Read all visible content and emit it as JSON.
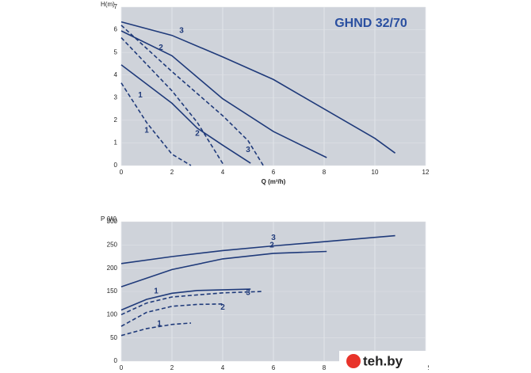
{
  "chart_data": [
    {
      "type": "line",
      "title": "GHND 32/70",
      "y_label": "H(m)",
      "x_label": "Q (m³/h)",
      "xlim": [
        0,
        12
      ],
      "xticks": [
        0,
        2,
        4,
        6,
        8,
        10,
        12
      ],
      "ylim": [
        0,
        7
      ],
      "yticks": [
        0,
        1,
        2,
        3,
        4,
        5,
        6,
        7
      ],
      "grid": true,
      "series": [
        {
          "name": "3",
          "color": "#1f3a7a",
          "dashed": false,
          "x": [
            0,
            2,
            4,
            6,
            8,
            10,
            10.8
          ],
          "values": [
            6.35,
            5.75,
            4.8,
            3.8,
            2.5,
            1.2,
            0.55
          ]
        },
        {
          "name": "2",
          "color": "#1f3a7a",
          "dashed": false,
          "x": [
            0,
            2,
            4,
            6,
            8.1
          ],
          "values": [
            5.95,
            4.85,
            2.95,
            1.5,
            0.35
          ]
        },
        {
          "name": "1",
          "color": "#1f3a7a",
          "dashed": false,
          "x": [
            0,
            2,
            3,
            4,
            5.1
          ],
          "values": [
            4.45,
            2.75,
            1.65,
            0.9,
            0.1
          ]
        },
        {
          "name": "3",
          "color": "#1f3a7a",
          "dashed": true,
          "x": [
            0,
            2,
            4,
            5,
            5.6
          ],
          "values": [
            6.2,
            4.15,
            2.2,
            1.1,
            0
          ]
        },
        {
          "name": "2",
          "color": "#1f3a7a",
          "dashed": true,
          "x": [
            0,
            2,
            3,
            4.05
          ],
          "values": [
            5.65,
            3.3,
            1.9,
            0
          ]
        },
        {
          "name": "1",
          "color": "#1f3a7a",
          "dashed": true,
          "x": [
            0,
            1,
            2,
            2.75
          ],
          "values": [
            3.65,
            1.9,
            0.5,
            0
          ]
        }
      ]
    },
    {
      "type": "line",
      "y_label": "P (W)",
      "x_label": "Q (m³/h)",
      "xlim": [
        0,
        12
      ],
      "xticks": [
        0,
        2,
        4,
        6,
        8,
        10,
        12
      ],
      "ylim": [
        0,
        300
      ],
      "yticks": [
        0,
        50,
        100,
        150,
        200,
        250,
        300
      ],
      "grid": true,
      "series": [
        {
          "name": "3",
          "color": "#1f3a7a",
          "dashed": false,
          "x": [
            0,
            2,
            4,
            6,
            8,
            10.8
          ],
          "values": [
            210,
            225,
            238,
            248,
            257,
            270
          ]
        },
        {
          "name": "2",
          "color": "#1f3a7a",
          "dashed": false,
          "x": [
            0,
            2,
            4,
            6,
            8.1
          ],
          "values": [
            160,
            197,
            220,
            232,
            236
          ]
        },
        {
          "name": "1",
          "color": "#1f3a7a",
          "dashed": false,
          "x": [
            0,
            1,
            2,
            3,
            5.1
          ],
          "values": [
            110,
            133,
            146,
            152,
            155
          ]
        },
        {
          "name": "3",
          "color": "#1f3a7a",
          "dashed": true,
          "x": [
            0,
            1,
            2,
            4,
            5.6
          ],
          "values": [
            100,
            125,
            138,
            147,
            150
          ]
        },
        {
          "name": "2",
          "color": "#1f3a7a",
          "dashed": true,
          "x": [
            0,
            1,
            2,
            3,
            4.05
          ],
          "values": [
            75,
            105,
            118,
            122,
            123
          ]
        },
        {
          "name": "1",
          "color": "#1f3a7a",
          "dashed": true,
          "x": [
            0,
            1,
            2,
            2.75
          ],
          "values": [
            55,
            70,
            79,
            82
          ]
        }
      ]
    }
  ],
  "watermark": "teh.by"
}
